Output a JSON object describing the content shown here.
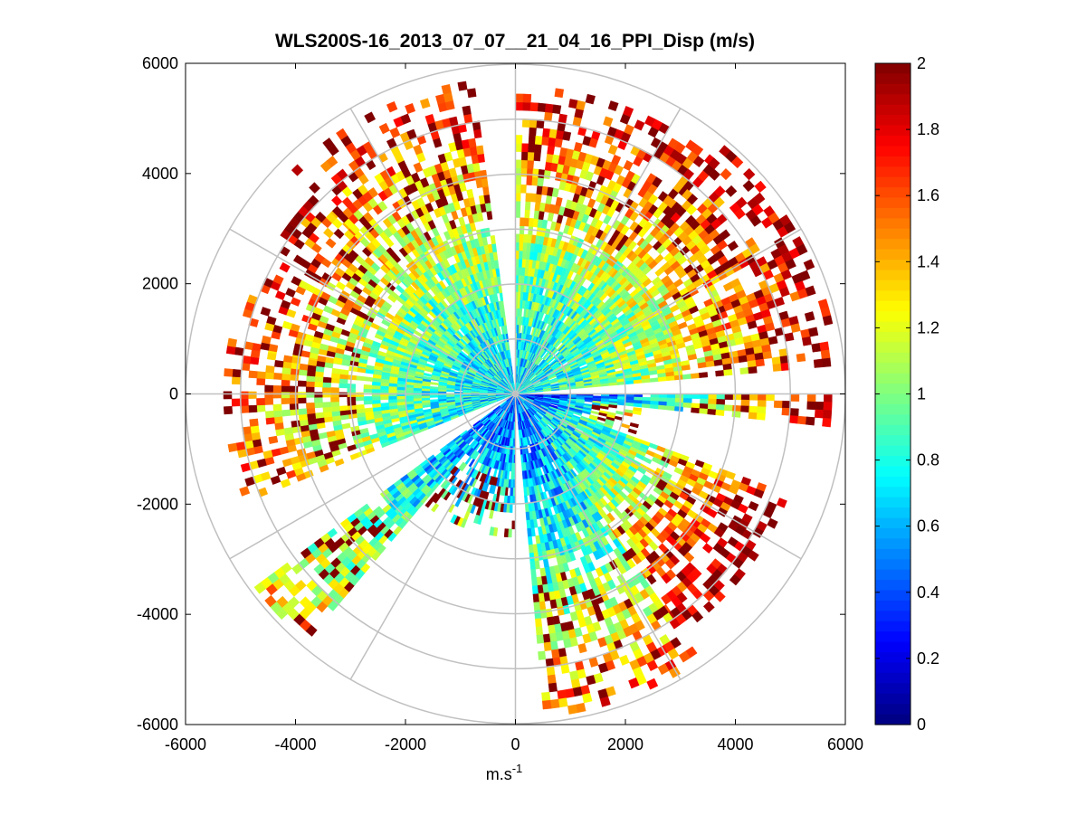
{
  "chart_data": {
    "type": "heatmap",
    "subtype": "polar-ppi",
    "title": "WLS200S-16_2013_07_07__21_04_16_PPI_Disp (m/s)",
    "xlabel": "m.s",
    "xlabel_sup": "-1",
    "ylabel": "",
    "xlim": [
      -6000,
      6000
    ],
    "ylim": [
      -6000,
      6000
    ],
    "xticks": [
      -6000,
      -4000,
      -2000,
      0,
      2000,
      4000,
      6000
    ],
    "yticks": [
      6000,
      4000,
      2000,
      0,
      -2000,
      -4000,
      -6000
    ],
    "xtick_labels": [
      "-6000",
      "-4000",
      "-2000",
      "0",
      "2000",
      "4000",
      "6000"
    ],
    "ytick_labels": [
      "6000",
      "4000",
      "2000",
      "0",
      "-2000",
      "-4000",
      "-6000"
    ],
    "polar_grid": {
      "rings": [
        1000,
        2000,
        3000,
        4000,
        5000,
        6000
      ],
      "spoke_angles_deg": [
        0,
        30,
        60,
        90,
        120,
        150,
        180,
        210,
        240,
        270,
        300,
        330
      ]
    },
    "colorbar": {
      "min": 0,
      "max": 2,
      "colormap": "jet",
      "ticks": [
        2,
        1.8,
        1.6,
        1.4,
        1.2,
        1,
        0.8,
        0.6,
        0.4,
        0.2,
        0
      ],
      "tick_labels": [
        "2",
        "1.8",
        "1.6",
        "1.4",
        "1.2",
        "1",
        "0.8",
        "0.6",
        "0.4",
        "0.2",
        "0"
      ]
    },
    "data_gaps_azimuth_deg": [
      [
        -8,
        0
      ],
      [
        83,
        90
      ],
      [
        173,
        180
      ],
      [
        235,
        245
      ]
    ],
    "sectors": [
      {
        "az_from": 0,
        "az_to": 40,
        "r_max": 5600,
        "near_value": 0.7,
        "far_value": 1.8
      },
      {
        "az_from": 40,
        "az_to": 85,
        "r_max": 5900,
        "near_value": 0.75,
        "far_value": 1.9
      },
      {
        "az_from": 90,
        "az_to": 95,
        "r_max": 5700,
        "near_value": 0.2,
        "far_value": 1.9
      },
      {
        "az_from": 95,
        "az_to": 110,
        "r_max": 2300,
        "near_value": 0.3,
        "far_value": 1.5
      },
      {
        "az_from": 110,
        "az_to": 145,
        "r_max": 5200,
        "near_value": 0.6,
        "far_value": 2.0
      },
      {
        "az_from": 145,
        "az_to": 175,
        "r_max": 5900,
        "near_value": 0.45,
        "far_value": 1.6
      },
      {
        "az_from": 180,
        "az_to": 220,
        "r_max": 2600,
        "near_value": 0.4,
        "far_value": 1.0
      },
      {
        "az_from": 220,
        "az_to": 233,
        "r_max": 5900,
        "near_value": 0.5,
        "far_value": 1.4
      },
      {
        "az_from": 248,
        "az_to": 280,
        "r_max": 5200,
        "near_value": 0.7,
        "far_value": 1.6
      },
      {
        "az_from": 280,
        "az_to": 315,
        "r_max": 5100,
        "near_value": 0.7,
        "far_value": 1.7
      },
      {
        "az_from": 315,
        "az_to": 352,
        "r_max": 5700,
        "near_value": 0.7,
        "far_value": 1.8
      }
    ]
  }
}
